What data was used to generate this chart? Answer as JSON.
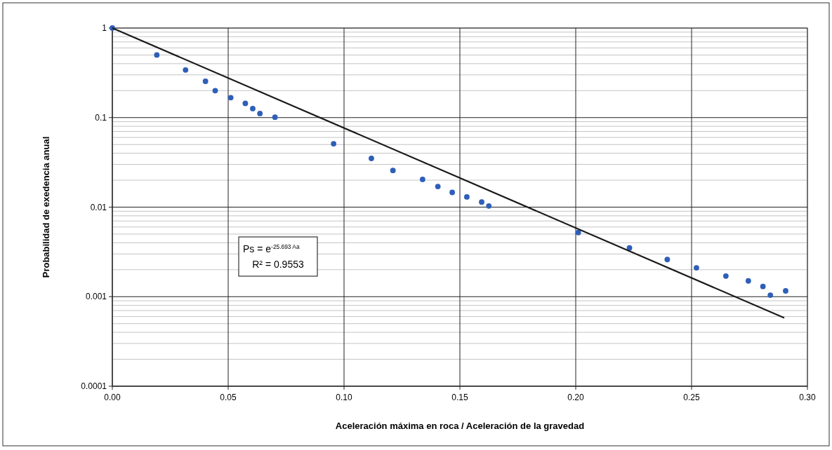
{
  "chart_data": {
    "type": "scatter",
    "xlabel": "Aceleración máxima en roca / Aceleración de la gravedad",
    "ylabel": "Probabilidad de exedencia anual",
    "log": "y",
    "grid": true,
    "marker": "circle",
    "xlim": [
      0,
      0.3
    ],
    "xticks": [
      {
        "value": 0,
        "label": "0.00"
      },
      {
        "value": 0.05,
        "label": "0.05"
      },
      {
        "value": 0.1,
        "label": "0.10"
      },
      {
        "value": 0.15,
        "label": "0.15"
      },
      {
        "value": 0.2,
        "label": "0.20"
      },
      {
        "value": 0.25,
        "label": "0.25"
      },
      {
        "value": 0.3,
        "label": "0.30"
      }
    ],
    "ylim": [
      0.0001,
      1
    ],
    "yticks": [
      0.0001,
      0.001,
      0.01,
      0.1,
      1
    ],
    "series": [
      {
        "color": "#2e5fb8",
        "x": [
          0,
          0.0192,
          0.0316,
          0.0402,
          0.0444,
          0.0511,
          0.0574,
          0.0606,
          0.0637,
          0.0702,
          0.0955,
          0.1118,
          0.1211,
          0.1339,
          0.1405,
          0.1467,
          0.153,
          0.1594,
          0.1625,
          0.2011,
          0.2232,
          0.2395,
          0.2521,
          0.2648,
          0.2745,
          0.2808,
          0.284,
          0.2906
        ],
        "values": [
          1,
          0.5,
          0.34,
          0.254,
          0.2,
          0.167,
          0.144,
          0.126,
          0.111,
          0.101,
          0.051,
          0.035,
          0.0257,
          0.0204,
          0.017,
          0.0146,
          0.013,
          0.0114,
          0.0103,
          0.0052,
          0.0035,
          0.0026,
          0.0021,
          0.0017,
          0.0015,
          0.0013,
          0.00104,
          0.00116
        ]
      },
      {
        "type": "line",
        "color": "#1a1a1a",
        "x": [
          0,
          0.29
        ],
        "values": [
          1,
          0.00058
        ],
        "marker": "none"
      }
    ],
    "annotations": [
      "Ps = e$^{-25.693 Aa}$",
      "R² = 0.9553"
    ]
  }
}
